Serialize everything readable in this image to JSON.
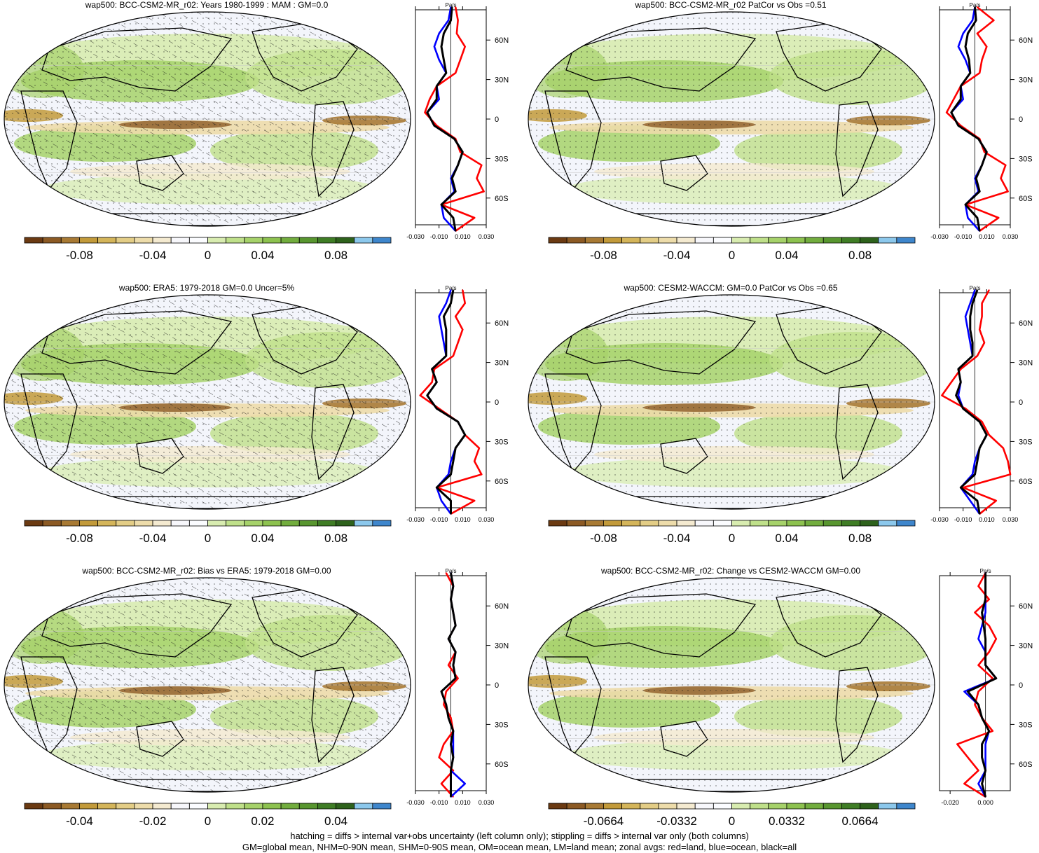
{
  "footer": {
    "line1": "hatching = diffs > internal var+obs uncertainty (left column only); stippling = diffs > internal var only (both columns)",
    "line2": "GM=global mean, NHM=0-90N mean, SHM=0-90S mean, OM=ocean mean, LM=land mean; zonal avgs: red=land, blue=ocean, black=all"
  },
  "palette": [
    "#6b3a12",
    "#8c5a24",
    "#a87a34",
    "#c29a3a",
    "#d4b55a",
    "#e3cd86",
    "#eddcaa",
    "#f4ead0",
    "#f7f7fb",
    "#fbfcff",
    "#d8ecb0",
    "#bfe08a",
    "#a6d26a",
    "#8dc24f",
    "#72ad3e",
    "#58962f",
    "#3f7d25",
    "#2e621c",
    "#8cc8ec",
    "#3e86cc"
  ],
  "series_colors": {
    "land": "#ff0000",
    "ocean": "#0000ff",
    "all": "#000000"
  },
  "chart_data": [
    {
      "type": "heatmap",
      "title": "wap500: BCC-CSM2-MR_r02: Years 1980-1999 : MAM : GM=0.0",
      "hatching": true,
      "colorbar": {
        "ticks": [
          "-0.08",
          "-0.04",
          "0",
          "0.04",
          "0.08"
        ]
      },
      "zonal": {
        "unit": "Pa/s",
        "xticks": [
          "-0.030",
          "-0.010",
          "0.010",
          "0.030"
        ],
        "yticks": [
          "60N",
          "30N",
          "0",
          "30S",
          "60S"
        ],
        "lat": [
          85,
          75,
          65,
          55,
          45,
          35,
          25,
          15,
          5,
          -5,
          -15,
          -25,
          -35,
          -45,
          -55,
          -65,
          -75,
          -85
        ],
        "series": [
          {
            "name": "land",
            "values": [
              0.004,
              0.006,
              0.005,
              0.012,
              0.008,
              0.004,
              -0.012,
              -0.018,
              -0.022,
              -0.012,
              0.004,
              0.008,
              0.026,
              0.022,
              0.028,
              -0.008,
              0.02,
              0.004
            ]
          },
          {
            "name": "ocean",
            "values": [
              0.0,
              -0.002,
              -0.01,
              -0.014,
              -0.01,
              -0.004,
              -0.012,
              -0.01,
              -0.02,
              -0.014,
              0.003,
              0.01,
              0.006,
              0.0,
              0.003,
              -0.008,
              -0.006,
              0.004
            ]
          },
          {
            "name": "all",
            "values": [
              0.001,
              0.0,
              -0.006,
              -0.008,
              -0.006,
              -0.004,
              -0.012,
              -0.012,
              -0.02,
              -0.014,
              0.003,
              0.01,
              0.006,
              0.001,
              0.004,
              -0.008,
              0.002,
              0.004
            ]
          }
        ]
      }
    },
    {
      "type": "heatmap",
      "title": "wap500: BCC-CSM2-MR_r02 PatCor vs Obs =0.51",
      "hatching": false,
      "colorbar": {
        "ticks": [
          "-0.08",
          "-0.04",
          "0",
          "0.04",
          "0.08"
        ]
      },
      "zonal": {
        "unit": "Pa/s",
        "xticks": [
          "-0.030",
          "-0.010",
          "0.010",
          "0.030"
        ],
        "yticks": [
          "60N",
          "30N",
          "0",
          "30S",
          "60S"
        ],
        "lat": [
          85,
          75,
          65,
          55,
          45,
          35,
          25,
          15,
          5,
          -5,
          -15,
          -25,
          -35,
          -45,
          -55,
          -65,
          -75,
          -85
        ],
        "series": [
          {
            "name": "land",
            "values": [
              0.002,
              0.016,
              0.002,
              0.01,
              0.006,
              0.004,
              -0.012,
              -0.018,
              -0.024,
              -0.012,
              0.004,
              0.008,
              0.026,
              0.022,
              0.028,
              -0.008,
              0.02,
              0.004
            ]
          },
          {
            "name": "ocean",
            "values": [
              0.0,
              -0.002,
              -0.01,
              -0.014,
              -0.008,
              -0.004,
              -0.012,
              -0.01,
              -0.02,
              -0.014,
              0.003,
              0.01,
              0.006,
              0.0,
              0.003,
              -0.008,
              -0.006,
              0.004
            ]
          },
          {
            "name": "all",
            "values": [
              0.0,
              0.001,
              -0.006,
              -0.008,
              -0.005,
              -0.004,
              -0.012,
              -0.012,
              -0.02,
              -0.014,
              0.003,
              0.01,
              0.006,
              0.001,
              0.004,
              -0.008,
              0.002,
              0.004
            ]
          }
        ]
      }
    },
    {
      "type": "heatmap",
      "title": "wap500: ERA5: 1979-2018 GM=0.0 Uncer=5%",
      "hatching": true,
      "colorbar": {
        "ticks": [
          "-0.08",
          "-0.04",
          "0",
          "0.04",
          "0.08"
        ]
      },
      "zonal": {
        "unit": "Pa/s",
        "xticks": [
          "-0.030",
          "-0.010",
          "0.010",
          "0.030"
        ],
        "yticks": [
          "60N",
          "30N",
          "0",
          "30S",
          "60S"
        ],
        "lat": [
          85,
          75,
          65,
          55,
          45,
          35,
          25,
          15,
          5,
          -5,
          -15,
          -25,
          -35,
          -45,
          -55,
          -65,
          -75,
          -85
        ],
        "series": [
          {
            "name": "land",
            "values": [
              0.01,
              0.012,
              0.004,
              0.01,
              0.006,
              0.002,
              -0.014,
              -0.016,
              -0.026,
              -0.01,
              0.006,
              0.012,
              0.024,
              0.02,
              0.026,
              -0.012,
              0.02,
              0.0
            ]
          },
          {
            "name": "ocean",
            "values": [
              0.0,
              -0.004,
              -0.01,
              -0.008,
              -0.006,
              -0.004,
              -0.016,
              -0.012,
              -0.02,
              -0.012,
              0.006,
              0.012,
              0.004,
              0.0,
              -0.002,
              -0.012,
              -0.008,
              0.0
            ]
          },
          {
            "name": "all",
            "values": [
              0.002,
              0.0,
              -0.006,
              -0.004,
              -0.004,
              -0.004,
              -0.016,
              -0.012,
              -0.02,
              -0.012,
              0.006,
              0.012,
              0.004,
              0.002,
              0.0,
              -0.012,
              0.0,
              0.0
            ]
          }
        ]
      }
    },
    {
      "type": "heatmap",
      "title": "wap500: CESM2-WACCM: GM=0.0 PatCor vs Obs =0.65",
      "hatching": false,
      "colorbar": {
        "ticks": [
          "-0.08",
          "-0.04",
          "0",
          "0.04",
          "0.08"
        ]
      },
      "zonal": {
        "unit": "Pa/s",
        "xticks": [
          "-0.030",
          "-0.010",
          "0.010",
          "0.030"
        ],
        "yticks": [
          "60N",
          "30N",
          "0",
          "30S",
          "60S"
        ],
        "lat": [
          85,
          75,
          65,
          55,
          45,
          35,
          25,
          15,
          5,
          -5,
          -15,
          -25,
          -35,
          -45,
          -55,
          -65,
          -75,
          -85
        ],
        "series": [
          {
            "name": "land",
            "values": [
              0.012,
              0.006,
              0.006,
              0.004,
              0.008,
              0.002,
              -0.012,
              -0.02,
              -0.028,
              -0.008,
              0.006,
              0.012,
              0.024,
              0.028,
              0.03,
              -0.01,
              0.018,
              0.004
            ]
          },
          {
            "name": "ocean",
            "values": [
              0.0,
              -0.004,
              -0.008,
              -0.006,
              -0.004,
              -0.002,
              -0.014,
              -0.012,
              -0.014,
              -0.01,
              0.004,
              0.01,
              0.004,
              0.0,
              -0.002,
              -0.012,
              -0.004,
              0.004
            ]
          },
          {
            "name": "all",
            "values": [
              0.002,
              -0.002,
              -0.004,
              -0.004,
              -0.002,
              -0.002,
              -0.014,
              -0.012,
              -0.016,
              -0.01,
              0.004,
              0.01,
              0.004,
              0.002,
              0.0,
              -0.012,
              0.002,
              0.004
            ]
          }
        ]
      }
    },
    {
      "type": "heatmap",
      "title": "wap500: BCC-CSM2-MR_r02: Bias vs ERA5: 1979-2018 GM=0.00",
      "hatching": true,
      "colorbar": {
        "ticks": [
          "-0.04",
          "-0.02",
          "0",
          "0.02",
          "0.04"
        ]
      },
      "zonal": {
        "unit": "Pa/s",
        "xticks": [
          "-0.030",
          "-0.010",
          "0.010",
          "0.030"
        ],
        "yticks": [
          "60N",
          "30N",
          "0",
          "30S",
          "60S"
        ],
        "lat": [
          85,
          75,
          65,
          55,
          45,
          35,
          25,
          15,
          5,
          -5,
          -15,
          -25,
          -35,
          -45,
          -55,
          -65,
          -75,
          -85
        ],
        "series": [
          {
            "name": "land",
            "values": [
              -0.004,
              0.002,
              0.0,
              0.002,
              0.004,
              -0.002,
              0.004,
              -0.002,
              0.006,
              -0.004,
              -0.006,
              0.0,
              0.002,
              -0.006,
              -0.01,
              0.002,
              -0.008,
              0.002
            ]
          },
          {
            "name": "ocean",
            "values": [
              0.0,
              0.002,
              0.0,
              0.002,
              0.004,
              -0.002,
              0.004,
              0.002,
              0.004,
              -0.008,
              -0.004,
              -0.002,
              0.002,
              0.002,
              0.002,
              0.0,
              0.012,
              0.0
            ]
          },
          {
            "name": "all",
            "values": [
              0.0,
              0.002,
              0.0,
              0.002,
              0.004,
              -0.002,
              0.004,
              0.002,
              0.004,
              -0.008,
              -0.004,
              -0.002,
              0.002,
              0.0,
              0.002,
              0.0,
              0.0,
              0.0
            ]
          }
        ]
      }
    },
    {
      "type": "heatmap",
      "title": "wap500: BCC-CSM2-MR_r02: Change vs CESM2-WACCM GM=0.00",
      "hatching": false,
      "colorbar": {
        "ticks": [
          "-0.0664",
          "-0.0332",
          "0",
          "0.0332",
          "0.0664"
        ]
      },
      "zonal": {
        "unit": "Pa/s",
        "xticks": [
          "-0.020",
          "0.000"
        ],
        "yticks": [
          "60N",
          "30N",
          "0",
          "30S",
          "60S"
        ],
        "lat": [
          85,
          75,
          65,
          55,
          45,
          35,
          25,
          15,
          5,
          -5,
          -15,
          -25,
          -35,
          -45,
          -55,
          -65,
          -75,
          -85
        ],
        "series": [
          {
            "name": "land",
            "values": [
              0.0,
              -0.004,
              0.002,
              -0.006,
              0.002,
              0.006,
              0.002,
              -0.004,
              0.004,
              -0.004,
              -0.006,
              -0.002,
              0.004,
              -0.016,
              -0.01,
              -0.004,
              -0.012,
              0.0
            ]
          },
          {
            "name": "ocean",
            "values": [
              0.0,
              0.0,
              0.0,
              0.0,
              -0.002,
              -0.004,
              0.0,
              0.0,
              0.006,
              -0.012,
              -0.004,
              -0.002,
              0.002,
              0.0,
              0.0,
              0.0,
              -0.004,
              0.0
            ]
          },
          {
            "name": "all",
            "values": [
              0.0,
              0.0,
              0.0,
              -0.002,
              -0.001,
              0.0,
              0.0,
              0.0,
              0.006,
              -0.01,
              -0.004,
              -0.002,
              0.002,
              -0.002,
              -0.002,
              0.0,
              -0.002,
              0.0
            ]
          }
        ]
      }
    }
  ]
}
